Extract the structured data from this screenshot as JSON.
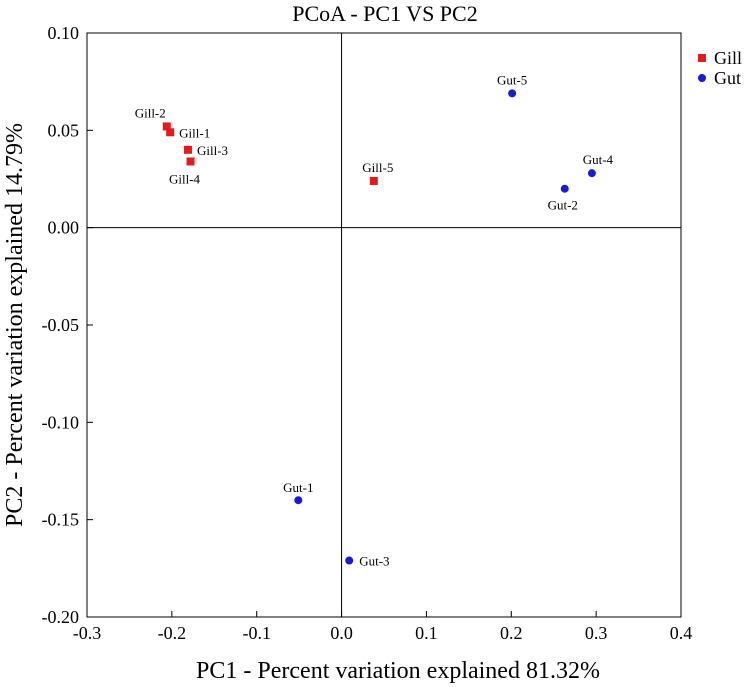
{
  "chart_data": {
    "type": "scatter",
    "title": "PCoA - PC1 VS PC2",
    "xlabel": "PC1 - Percent variation explained 81.32%",
    "ylabel": "PC2 - Percent variation explained 14.79%",
    "xlim": [
      -0.3,
      0.4
    ],
    "ylim": [
      -0.2,
      0.1
    ],
    "xticks": [
      -0.3,
      -0.2,
      -0.1,
      0.0,
      0.1,
      0.2,
      0.3,
      0.4
    ],
    "xtick_labels": [
      "-0.3",
      "-0.2",
      "-0.1",
      "0.0",
      "0.1",
      "0.2",
      "0.3",
      "0.4"
    ],
    "yticks": [
      0.1,
      0.05,
      0.0,
      -0.05,
      -0.1,
      -0.15,
      -0.2
    ],
    "ytick_labels": [
      "0.10",
      "0.05",
      "0.00",
      "-0.05",
      "-0.10",
      "-0.15",
      "-0.20"
    ],
    "reference_lines": {
      "x": 0,
      "y": 0
    },
    "legend_position": "top-right (outside plot)",
    "series": [
      {
        "name": "Gill",
        "color": "#e8191c",
        "marker": "square",
        "points": [
          {
            "label": "Gill-1",
            "x": -0.202,
            "y": 0.049
          },
          {
            "label": "Gill-2",
            "x": -0.206,
            "y": 0.052
          },
          {
            "label": "Gill-3",
            "x": -0.181,
            "y": 0.04
          },
          {
            "label": "Gill-4",
            "x": -0.178,
            "y": 0.034
          },
          {
            "label": "Gill-5",
            "x": 0.038,
            "y": 0.024
          }
        ]
      },
      {
        "name": "Gut",
        "color": "#1a1adc",
        "marker": "circle",
        "points": [
          {
            "label": "Gut-1",
            "x": -0.051,
            "y": -0.14
          },
          {
            "label": "Gut-2",
            "x": 0.263,
            "y": 0.02
          },
          {
            "label": "Gut-3",
            "x": 0.009,
            "y": -0.171
          },
          {
            "label": "Gut-4",
            "x": 0.295,
            "y": 0.028
          },
          {
            "label": "Gut-5",
            "x": 0.201,
            "y": 0.069
          }
        ]
      }
    ]
  }
}
